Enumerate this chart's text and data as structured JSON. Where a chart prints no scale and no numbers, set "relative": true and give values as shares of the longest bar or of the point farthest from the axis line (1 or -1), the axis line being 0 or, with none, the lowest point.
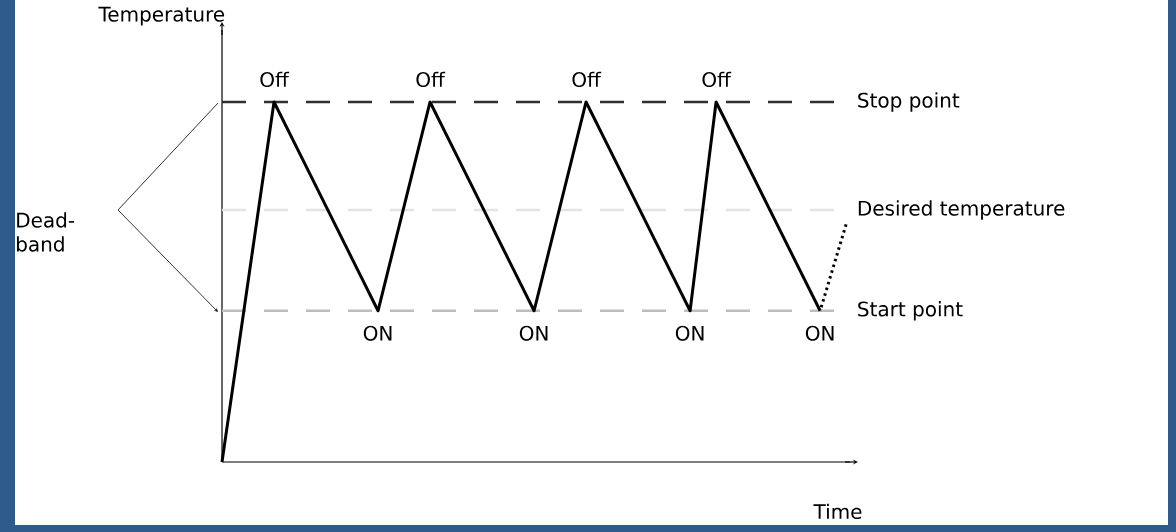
{
  "chart_data": {
    "type": "line",
    "relative": true,
    "xlabel": "Time",
    "ylabel": "Temperature",
    "categories": [
      null,
      null,
      null,
      null,
      null,
      null,
      null,
      null,
      null,
      null,
      null,
      null,
      null,
      null,
      null,
      null,
      null,
      null,
      null,
      null,
      null,
      null,
      null,
      null,
      null
    ],
    "series": [
      {
        "color": "#000000",
        "line_style": "solid",
        "values": [
          0,
          0.5,
          1,
          0.855,
          0.71,
          0.565,
          0.42,
          0.71,
          1,
          0.855,
          0.71,
          0.565,
          0.42,
          0.71,
          1,
          0.855,
          0.71,
          0.565,
          0.42,
          1,
          0.855,
          0.71,
          0.565,
          0.42,
          null
        ]
      },
      {
        "color": "#000000",
        "line_style": "dotted",
        "values": [
          null,
          null,
          null,
          null,
          null,
          null,
          null,
          null,
          null,
          null,
          null,
          null,
          null,
          null,
          null,
          null,
          null,
          null,
          null,
          null,
          null,
          null,
          null,
          0.42,
          0.66
        ]
      }
    ],
    "ref_lines": [
      {
        "axis": "y",
        "value": 1,
        "label": "Stop point",
        "color": "#303030",
        "line_style": "dashed"
      },
      {
        "axis": "y",
        "value": 0.7,
        "label": "Desired temperature",
        "color": "#e3e3e3",
        "line_style": "dashed"
      },
      {
        "axis": "y",
        "value": 0.42,
        "label": "Start point",
        "color": "#bdbdbd",
        "line_style": "dashed"
      }
    ],
    "annotations": [
      "Off",
      "Off",
      "Off",
      "Off",
      "ON",
      "ON",
      "ON",
      "ON",
      "Dead-band"
    ]
  }
}
